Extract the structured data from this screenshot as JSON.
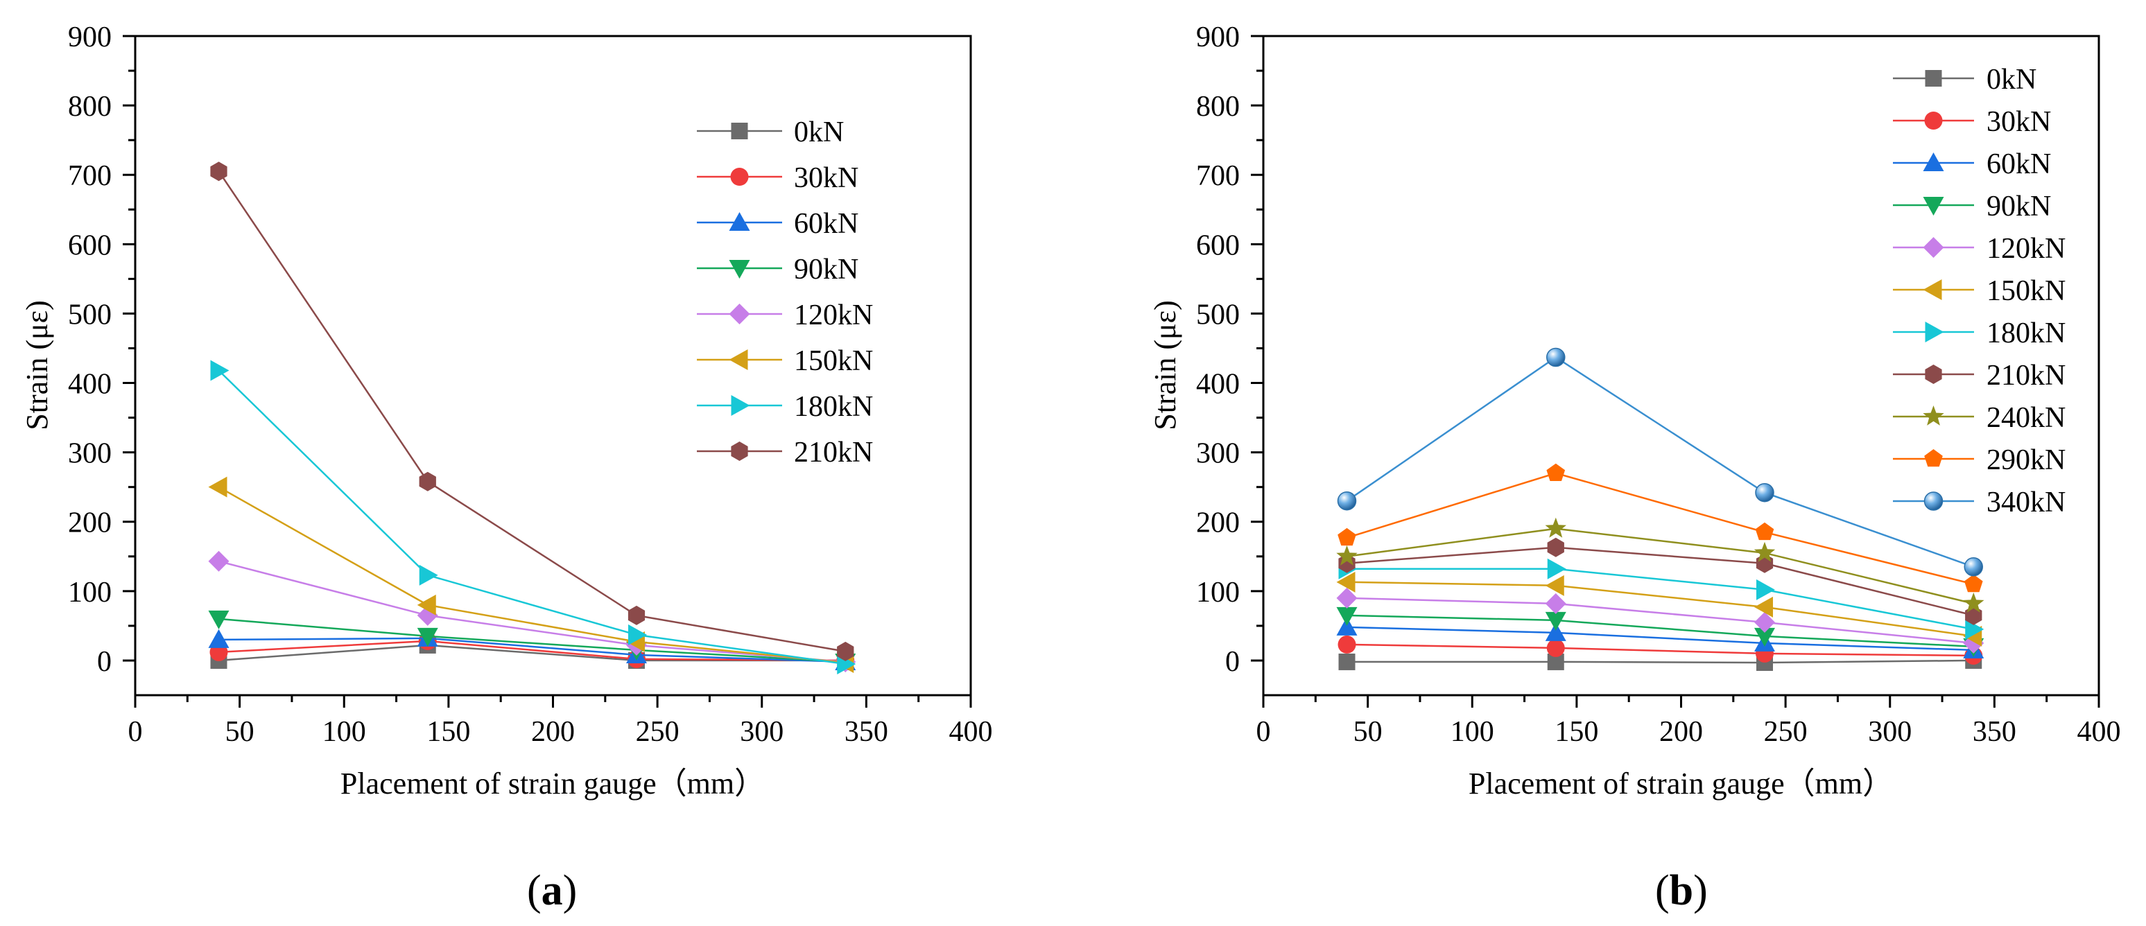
{
  "chart_data": [
    {
      "id": "a",
      "type": "line",
      "panel_label": "(a)",
      "panel_letter": "a",
      "xlabel": "Placement of strain gauge（mm）",
      "ylabel": "Strain (με)",
      "xlim": [
        0,
        400
      ],
      "ylim": [
        -50,
        900
      ],
      "xticks": [
        0,
        50,
        100,
        150,
        200,
        250,
        300,
        350,
        400
      ],
      "yticks": [
        0,
        100,
        200,
        300,
        400,
        500,
        600,
        700,
        800,
        900
      ],
      "legend_position": "top-right",
      "x": [
        40,
        140,
        240,
        340
      ],
      "series": [
        {
          "name": "0kN",
          "values": [
            0,
            22,
            0,
            0
          ],
          "color": "#6b6b6b",
          "marker": "square"
        },
        {
          "name": "30kN",
          "values": [
            12,
            28,
            2,
            0
          ],
          "color": "#ef3b3b",
          "marker": "circle"
        },
        {
          "name": "60kN",
          "values": [
            30,
            32,
            8,
            -2
          ],
          "color": "#1a6fe0",
          "marker": "triangle-up"
        },
        {
          "name": "90kN",
          "values": [
            60,
            35,
            15,
            -2
          ],
          "color": "#14a85a",
          "marker": "triangle-down"
        },
        {
          "name": "120kN",
          "values": [
            143,
            65,
            22,
            -2
          ],
          "color": "#c77ee8",
          "marker": "diamond"
        },
        {
          "name": "150kN",
          "values": [
            250,
            80,
            27,
            -3
          ],
          "color": "#d4a017",
          "marker": "triangle-left"
        },
        {
          "name": "180kN",
          "values": [
            418,
            123,
            37,
            -5
          ],
          "color": "#18c7d6",
          "marker": "triangle-right"
        },
        {
          "name": "210kN",
          "values": [
            705,
            258,
            65,
            13
          ],
          "color": "#8b4a4a",
          "marker": "hexagon"
        }
      ]
    },
    {
      "id": "b",
      "type": "line",
      "panel_label": "(b)",
      "panel_letter": "b",
      "xlabel": "Placement of strain gauge（mm）",
      "ylabel": "Strain (με)",
      "xlim": [
        0,
        400
      ],
      "ylim": [
        -50,
        900
      ],
      "xticks": [
        0,
        50,
        100,
        150,
        200,
        250,
        300,
        350,
        400
      ],
      "yticks": [
        0,
        100,
        200,
        300,
        400,
        500,
        600,
        700,
        800,
        900
      ],
      "legend_position": "top-right",
      "x": [
        40,
        140,
        240,
        340
      ],
      "series": [
        {
          "name": "0kN",
          "values": [
            -2,
            -2,
            -3,
            0
          ],
          "color": "#6b6b6b",
          "marker": "square"
        },
        {
          "name": "30kN",
          "values": [
            23,
            18,
            10,
            7
          ],
          "color": "#ef3b3b",
          "marker": "circle"
        },
        {
          "name": "60kN",
          "values": [
            48,
            40,
            25,
            15
          ],
          "color": "#1a6fe0",
          "marker": "triangle-up"
        },
        {
          "name": "90kN",
          "values": [
            65,
            58,
            35,
            20
          ],
          "color": "#14a85a",
          "marker": "triangle-down"
        },
        {
          "name": "120kN",
          "values": [
            90,
            82,
            55,
            25
          ],
          "color": "#c77ee8",
          "marker": "diamond"
        },
        {
          "name": "150kN",
          "values": [
            113,
            108,
            77,
            35
          ],
          "color": "#d4a017",
          "marker": "triangle-left"
        },
        {
          "name": "180kN",
          "values": [
            132,
            132,
            102,
            45
          ],
          "color": "#18c7d6",
          "marker": "triangle-right"
        },
        {
          "name": "210kN",
          "values": [
            140,
            163,
            140,
            65
          ],
          "color": "#8b4a4a",
          "marker": "hexagon"
        },
        {
          "name": "240kN",
          "values": [
            150,
            190,
            155,
            82
          ],
          "color": "#8f8f1e",
          "marker": "star"
        },
        {
          "name": "290kN",
          "values": [
            177,
            270,
            185,
            110
          ],
          "color": "#ff6a00",
          "marker": "pentagon"
        },
        {
          "name": "340kN",
          "values": [
            230,
            437,
            242,
            135
          ],
          "color": "#3a8fd0",
          "marker": "sphere"
        }
      ]
    }
  ]
}
